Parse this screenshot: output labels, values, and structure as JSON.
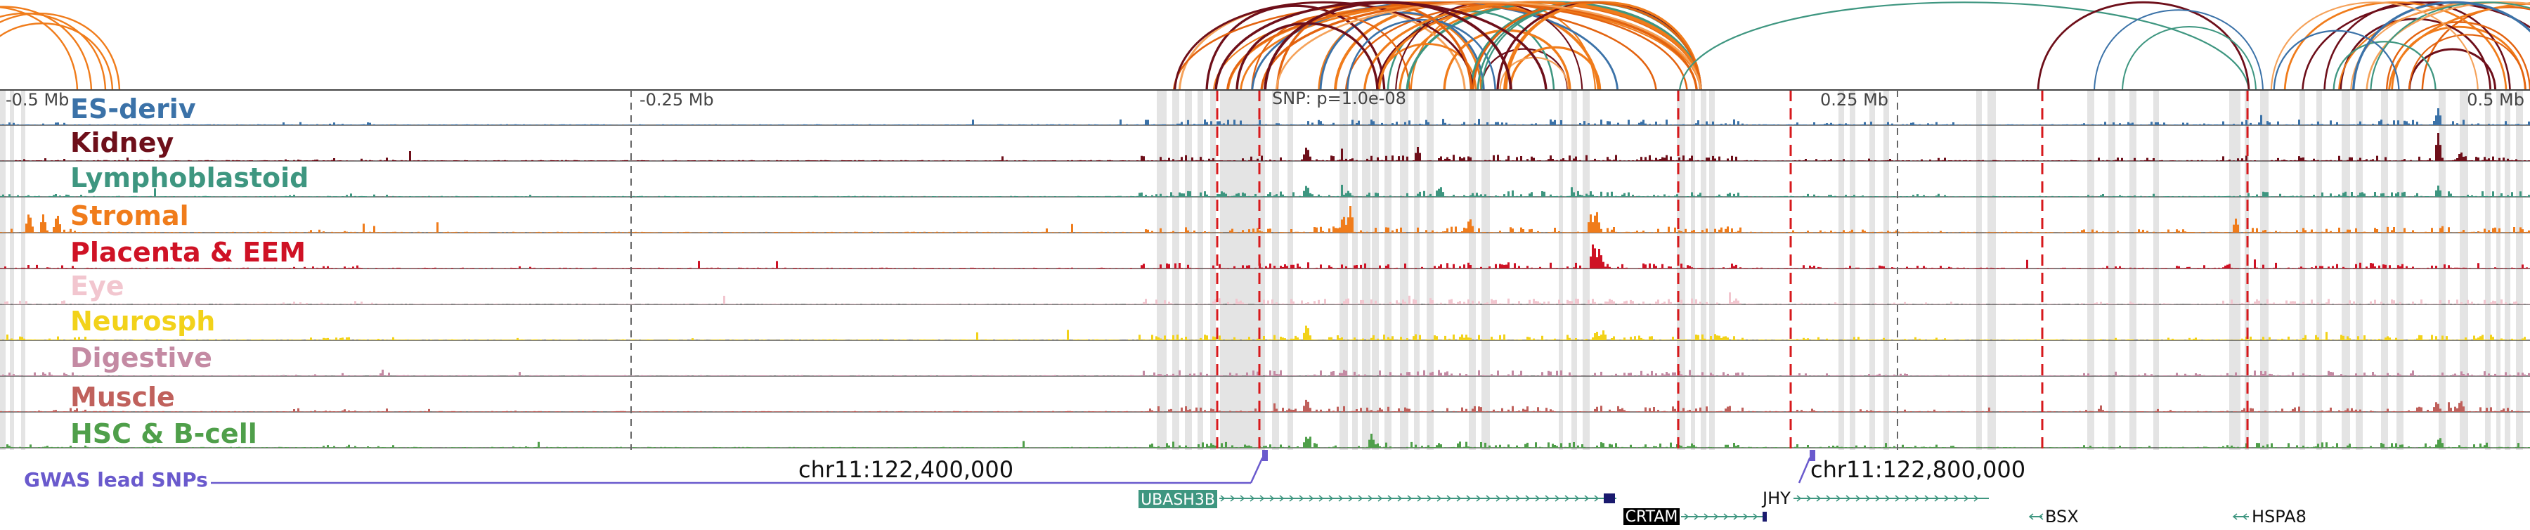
{
  "tracks": [
    {
      "label": "ES-deriv",
      "color": "#3b72a8"
    },
    {
      "label": "Kidney",
      "color": "#6e0f1a"
    },
    {
      "label": "Lymphoblastoid",
      "color": "#3e9680"
    },
    {
      "label": "Stromal",
      "color": "#f07c1b"
    },
    {
      "label": "Placenta & EEM",
      "color": "#cf1225"
    },
    {
      "label": "Eye",
      "color": "#f2c6cf"
    },
    {
      "label": "Neurosph",
      "color": "#f2d21a"
    },
    {
      "label": "Digestive",
      "color": "#c48aa3"
    },
    {
      "label": "Muscle",
      "color": "#c0615c"
    },
    {
      "label": "HSC & B-cell",
      "color": "#4f9f4a"
    }
  ],
  "axis": {
    "ticks": [
      {
        "label": "-0.5 Mb",
        "pos": -0.5
      },
      {
        "label": "-0.25 Mb",
        "pos": -0.25
      },
      {
        "label": "0.25 Mb",
        "pos": 0.25
      },
      {
        "label": "0.5 Mb",
        "pos": 0.5
      }
    ],
    "snp_label": "SNP: p=1.0e-08"
  },
  "gwas": {
    "label": "GWAS lead SNPs",
    "color": "#6a5acd",
    "coords": [
      {
        "label": "chr11:122,400,000"
      },
      {
        "label": "chr11:122,800,000"
      }
    ]
  },
  "genes": [
    {
      "name": "UBASH3B",
      "label_style": "box",
      "box_color": "#3e9680",
      "strand": "+"
    },
    {
      "name": "CRTAM",
      "label_style": "box",
      "box_color": "#000000",
      "strand": "+"
    },
    {
      "name": "JHY",
      "label_style": "text",
      "strand": "+"
    },
    {
      "name": "BSX",
      "label_style": "text",
      "strand": "-"
    },
    {
      "name": "HSPA8",
      "label_style": "text",
      "strand": "-"
    }
  ],
  "colors": {
    "shade": "#e4e4e4",
    "dashed": "#d7191c",
    "arc_palette": [
      "#f07c1b",
      "#f07c1b",
      "#f07c1b",
      "#e3630f",
      "#6e0f1a",
      "#3e9680",
      "#3b72a8",
      "#f5a25a"
    ]
  }
}
